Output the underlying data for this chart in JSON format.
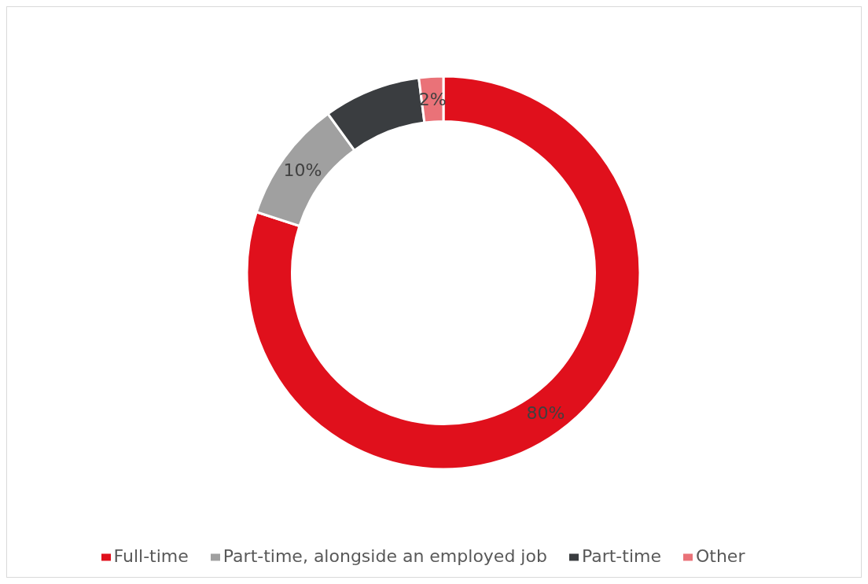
{
  "chart_data": {
    "type": "donut",
    "categories": [
      "Full-time",
      "Part-time, alongside an employed job",
      "Part-time",
      "Other"
    ],
    "values": [
      80,
      10,
      8,
      2
    ],
    "colors": [
      "#e0101c",
      "#a0a0a0",
      "#3a3d40",
      "#ea7278"
    ],
    "value_labels": [
      "80%",
      "10%",
      null,
      "2%"
    ],
    "legend": "bottom"
  }
}
